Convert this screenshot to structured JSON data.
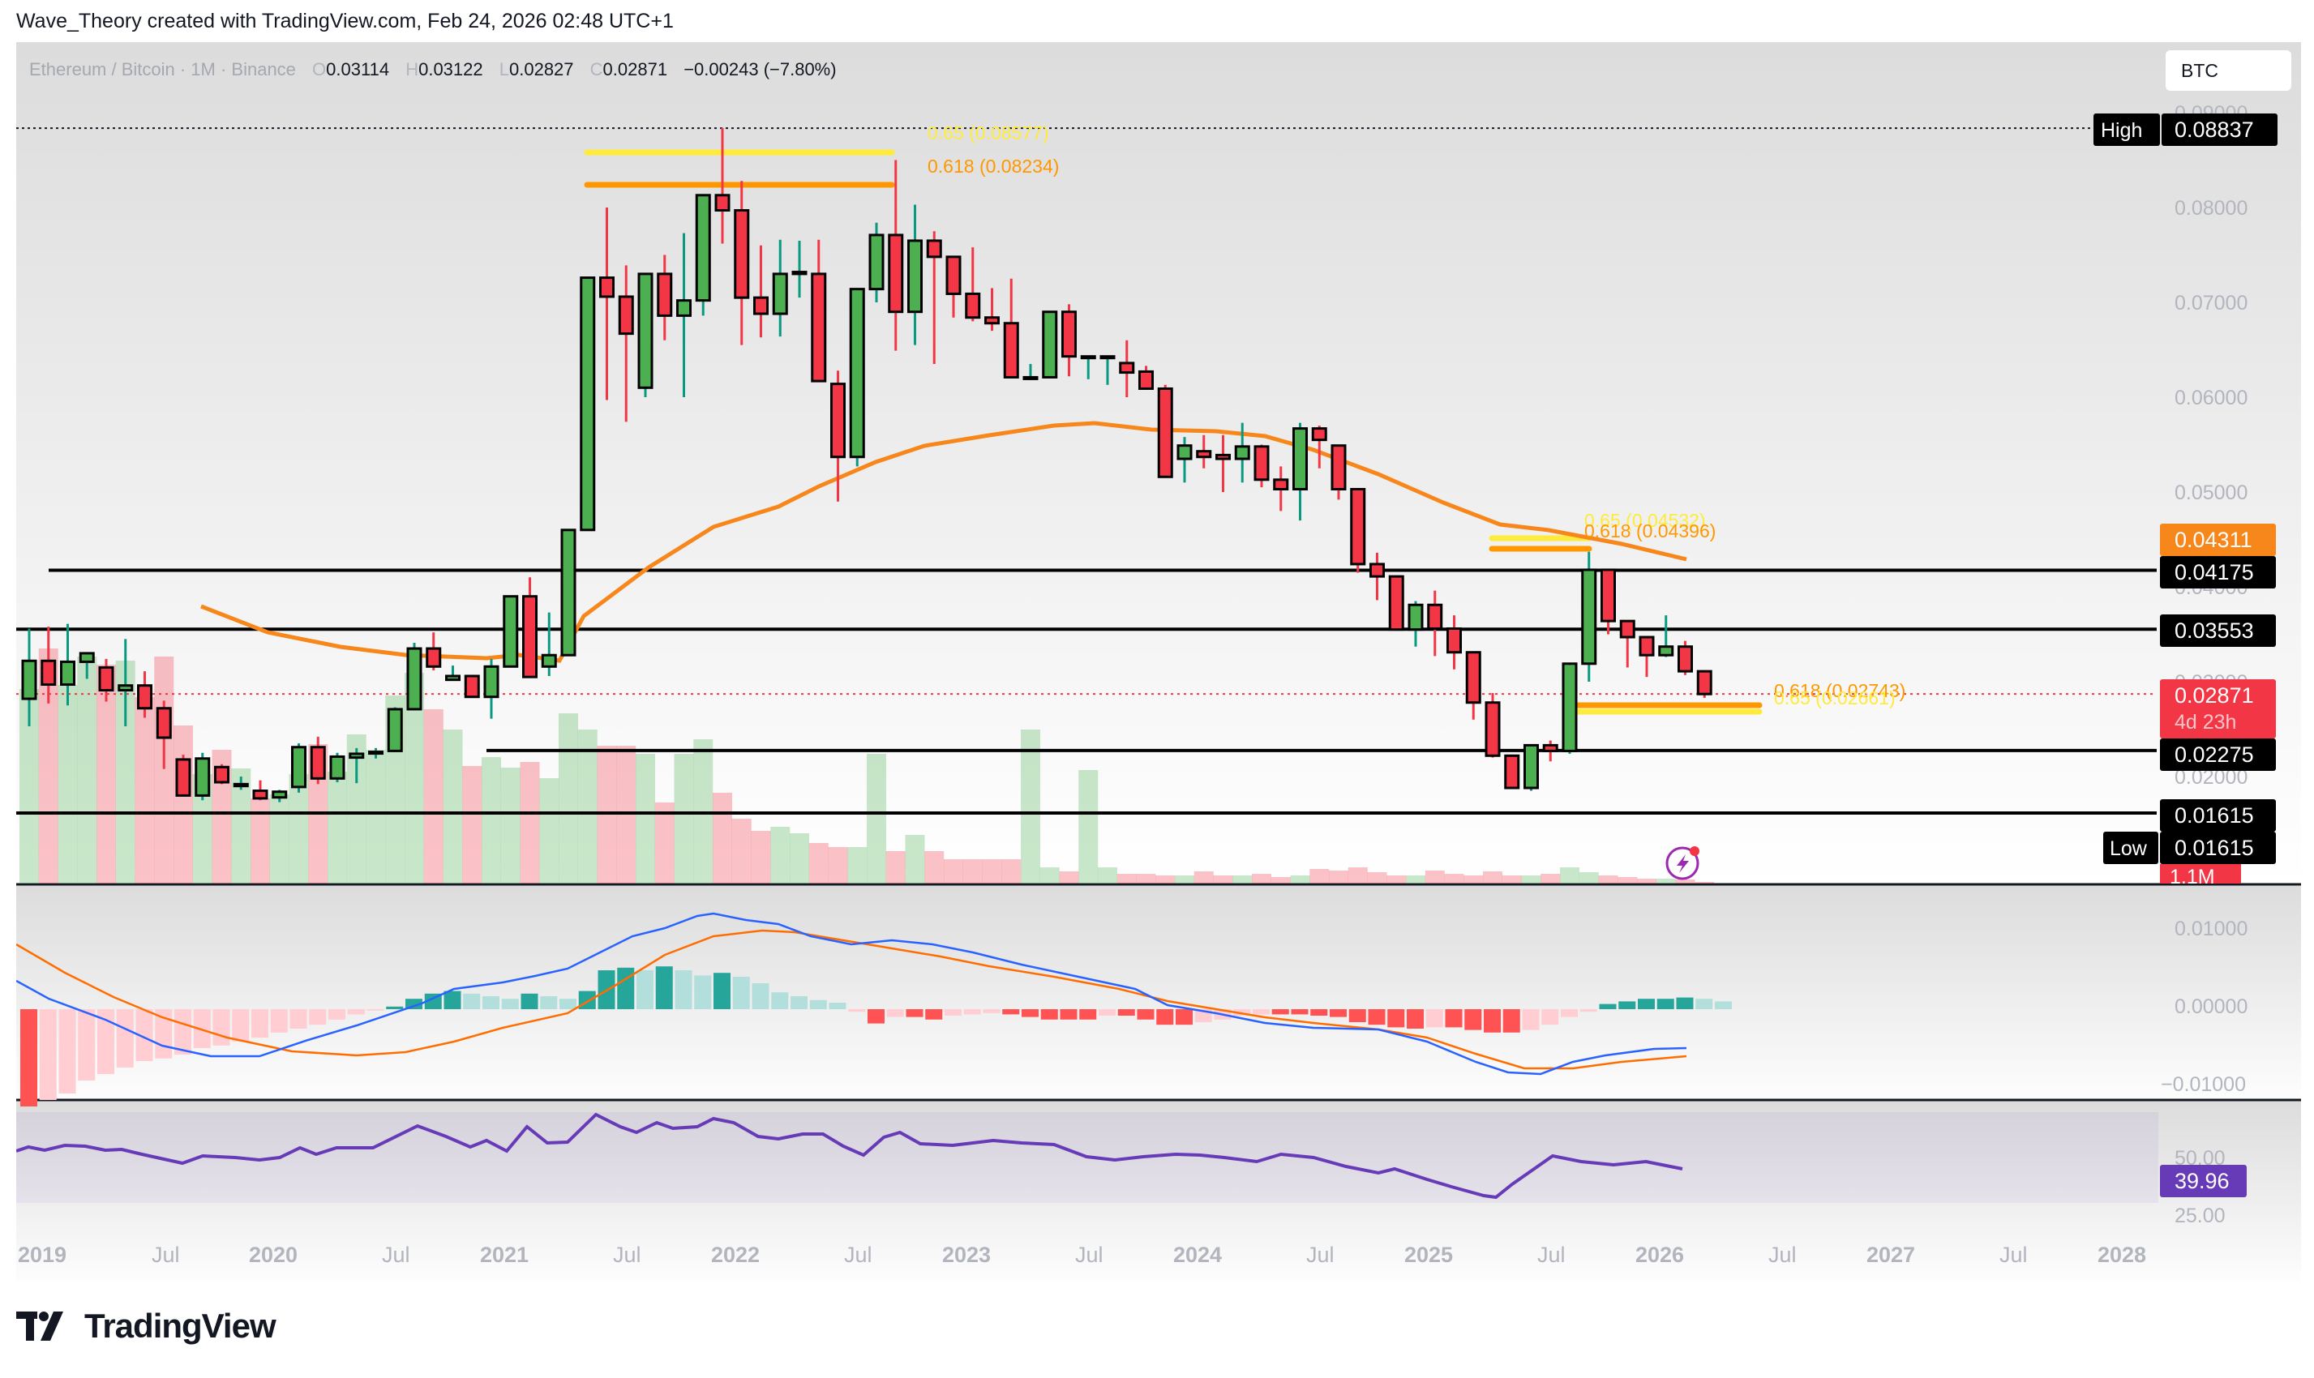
{
  "header": {
    "caption": "Wave_Theory created with TradingView.com, Feb 24, 2026 02:48 UTC+1"
  },
  "legend": {
    "symbol": "Ethereum / Bitcoin · 1M · Binance",
    "o_label": "O",
    "o": "0.03114",
    "h_label": "H",
    "h": "0.03122",
    "l_label": "L",
    "l": "0.02827",
    "c_label": "C",
    "c": "0.02871",
    "change": "−0.00243 (−7.80%)"
  },
  "currency_button": "BTC",
  "price_axis": {
    "ticks": [
      "0.09000",
      "0.08000",
      "0.07000",
      "0.06000",
      "0.05000",
      "0.04000",
      "0.03000",
      "0.02000"
    ],
    "labels": {
      "high_tag": "High",
      "high": "0.08837",
      "ema": "0.04311",
      "r1": "0.04175",
      "r2": "0.03553",
      "last": "0.02871",
      "countdown": "4d 23h",
      "s1": "0.02275",
      "s2": "0.01615",
      "low_tag": "Low",
      "low": "0.01615",
      "volume": "1.1M"
    }
  },
  "fib_labels": {
    "top_065": "0.65 (0.08577)",
    "top_0618": "0.618 (0.08234)",
    "mid_065": "0.65 (0.04532)",
    "mid_0618": "0.618 (0.04396)",
    "low_0618": "0.618 (0.02743)",
    "low_065": "0.65 (0.02661)"
  },
  "macd_axis": {
    "ticks": [
      "0.01000",
      "0.00000",
      "−0.01000"
    ]
  },
  "rsi_axis": {
    "ticks": [
      "50.00",
      "25.00"
    ],
    "value": "39.96"
  },
  "time_axis": {
    "ticks": [
      "2019",
      "Jul",
      "2020",
      "Jul",
      "2021",
      "Jul",
      "2022",
      "Jul",
      "2023",
      "Jul",
      "2024",
      "Jul",
      "2025",
      "Jul",
      "2026",
      "Jul",
      "2027",
      "Jul",
      "2028"
    ]
  },
  "brand": {
    "name": "TradingView"
  },
  "colors": {
    "up": "#4caf50",
    "down": "#f23645",
    "ema": "#f7861b",
    "fib_065": "#ffeb3b",
    "fib_0618": "#ff9800",
    "rsi": "#673ab7",
    "macd": "#2962ff",
    "signal": "#ff6d00"
  },
  "chart_data": {
    "type": "candlestick",
    "title": "Ethereum / Bitcoin · 1M · Binance",
    "ylabel": "BTC",
    "ylim": [
      0.0135,
      0.0905
    ],
    "x_start": "2018-11",
    "interval": "1M",
    "candles": [
      [
        0.0282,
        0.0356,
        0.0253,
        0.0322
      ],
      [
        0.0322,
        0.0358,
        0.0277,
        0.0297
      ],
      [
        0.0297,
        0.0361,
        0.0275,
        0.0321
      ],
      [
        0.0321,
        0.0327,
        0.0303,
        0.033
      ],
      [
        0.0315,
        0.0324,
        0.0279,
        0.0291
      ],
      [
        0.0291,
        0.0345,
        0.0253,
        0.0296
      ],
      [
        0.0296,
        0.0311,
        0.0262,
        0.0272
      ],
      [
        0.0272,
        0.028,
        0.0208,
        0.0241
      ],
      [
        0.0218,
        0.0223,
        0.0182,
        0.018
      ],
      [
        0.018,
        0.0225,
        0.0175,
        0.0219
      ],
      [
        0.021,
        0.0213,
        0.0192,
        0.0194
      ],
      [
        0.019,
        0.02,
        0.0186,
        0.0192
      ],
      [
        0.0185,
        0.0196,
        0.0175,
        0.0177
      ],
      [
        0.0178,
        0.0186,
        0.0173,
        0.0184
      ],
      [
        0.0189,
        0.0235,
        0.0183,
        0.0231
      ],
      [
        0.0231,
        0.0242,
        0.0192,
        0.0198
      ],
      [
        0.0198,
        0.0225,
        0.0194,
        0.0221
      ],
      [
        0.022,
        0.023,
        0.0193,
        0.0224
      ],
      [
        0.0225,
        0.023,
        0.0219,
        0.0226
      ],
      [
        0.0227,
        0.0273,
        0.0226,
        0.0271
      ],
      [
        0.0271,
        0.0341,
        0.027,
        0.0335
      ],
      [
        0.0335,
        0.0352,
        0.0312,
        0.0316
      ],
      [
        0.0302,
        0.0317,
        0.0302,
        0.0306
      ],
      [
        0.0306,
        0.0282,
        0.0296,
        0.0284
      ],
      [
        0.0284,
        0.0324,
        0.0261,
        0.0316
      ],
      [
        0.0316,
        0.0387,
        0.0316,
        0.039
      ],
      [
        0.039,
        0.041,
        0.031,
        0.0305
      ],
      [
        0.0316,
        0.0373,
        0.0306,
        0.0328
      ],
      [
        0.0328,
        0.0433,
        0.033,
        0.046
      ],
      [
        0.046,
        0.065,
        0.0459,
        0.0726
      ],
      [
        0.0726,
        0.08,
        0.0597,
        0.0706
      ],
      [
        0.0706,
        0.0739,
        0.0574,
        0.0667
      ],
      [
        0.061,
        0.073,
        0.06,
        0.073
      ],
      [
        0.073,
        0.075,
        0.066,
        0.0686
      ],
      [
        0.0686,
        0.0773,
        0.06,
        0.0702
      ],
      [
        0.0702,
        0.078,
        0.0686,
        0.0813
      ],
      [
        0.0813,
        0.0884,
        0.0762,
        0.0797
      ],
      [
        0.0797,
        0.0828,
        0.0655,
        0.0705
      ],
      [
        0.0705,
        0.076,
        0.0663,
        0.0688
      ],
      [
        0.0688,
        0.0766,
        0.0664,
        0.073
      ],
      [
        0.073,
        0.0765,
        0.0705,
        0.0732
      ],
      [
        0.073,
        0.0766,
        0.0635,
        0.0617
      ],
      [
        0.0614,
        0.0628,
        0.049,
        0.0537
      ],
      [
        0.0537,
        0.0707,
        0.0527,
        0.0714
      ],
      [
        0.0714,
        0.0784,
        0.07,
        0.0771
      ],
      [
        0.0771,
        0.085,
        0.0649,
        0.069
      ],
      [
        0.069,
        0.0803,
        0.0655,
        0.0765
      ],
      [
        0.0765,
        0.0775,
        0.0635,
        0.0748
      ],
      [
        0.0748,
        0.0733,
        0.0684,
        0.0709
      ],
      [
        0.0709,
        0.0758,
        0.068,
        0.0684
      ],
      [
        0.0684,
        0.0715,
        0.067,
        0.0678
      ],
      [
        0.0678,
        0.0725,
        0.063,
        0.0621
      ],
      [
        0.0621,
        0.0635,
        0.0618,
        0.0621
      ],
      [
        0.0621,
        0.069,
        0.0621,
        0.069
      ],
      [
        0.069,
        0.0698,
        0.0622,
        0.0643
      ],
      [
        0.0643,
        0.064,
        0.0619,
        0.0643
      ],
      [
        0.0643,
        0.0626,
        0.0613,
        0.0643
      ],
      [
        0.0636,
        0.066,
        0.06,
        0.0626
      ],
      [
        0.0627,
        0.0633,
        0.0618,
        0.0609
      ],
      [
        0.0609,
        0.0613,
        0.0553,
        0.0516
      ],
      [
        0.0535,
        0.0558,
        0.051,
        0.0549
      ],
      [
        0.0543,
        0.056,
        0.0525,
        0.0537
      ],
      [
        0.0539,
        0.056,
        0.05,
        0.0535
      ],
      [
        0.0535,
        0.0573,
        0.051,
        0.0548
      ],
      [
        0.0548,
        0.055,
        0.0505,
        0.0513
      ],
      [
        0.0513,
        0.0527,
        0.048,
        0.0503
      ],
      [
        0.0503,
        0.0573,
        0.047,
        0.0567
      ],
      [
        0.0567,
        0.057,
        0.0525,
        0.0555
      ],
      [
        0.0549,
        0.0545,
        0.0492,
        0.0503
      ],
      [
        0.0503,
        0.0473,
        0.0415,
        0.0424
      ],
      [
        0.0424,
        0.0436,
        0.0386,
        0.0411
      ],
      [
        0.0411,
        0.0405,
        0.0355,
        0.0355
      ],
      [
        0.0355,
        0.0385,
        0.0337,
        0.0381
      ],
      [
        0.0381,
        0.0396,
        0.0327,
        0.0356
      ],
      [
        0.0356,
        0.037,
        0.0313,
        0.0331
      ],
      [
        0.0331,
        0.0324,
        0.026,
        0.0278
      ],
      [
        0.0278,
        0.0288,
        0.022,
        0.0222
      ],
      [
        0.0222,
        0.0211,
        0.0188,
        0.0188
      ],
      [
        0.0188,
        0.0232,
        0.0185,
        0.0233
      ],
      [
        0.0233,
        0.0238,
        0.0216,
        0.0227
      ],
      [
        0.0227,
        0.0311,
        0.0224,
        0.0319
      ],
      [
        0.0319,
        0.0437,
        0.03,
        0.0418
      ],
      [
        0.0418,
        0.0418,
        0.035,
        0.0364
      ],
      [
        0.0364,
        0.0355,
        0.0315,
        0.0347
      ],
      [
        0.0347,
        0.0335,
        0.0305,
        0.0328
      ],
      [
        0.0328,
        0.037,
        0.0326,
        0.0337
      ],
      [
        0.0337,
        0.0343,
        0.0307,
        0.0311
      ],
      [
        0.0311,
        0.0312,
        0.0283,
        0.0287
      ]
    ],
    "overlays": {
      "ema50_last": 0.04311,
      "horizontal_levels": [
        0.04175,
        0.03553,
        0.02275,
        0.01615
      ],
      "high": 0.08837,
      "low": 0.01615,
      "last": 0.02871,
      "fib_zones": [
        {
          "level_065": 0.08577,
          "level_0618": 0.08234
        },
        {
          "level_065": 0.04532,
          "level_0618": 0.04396
        },
        {
          "level_0618": 0.02743,
          "level_065": 0.02661
        }
      ]
    },
    "macd": {
      "ylim": [
        -0.0125,
        0.0115
      ],
      "ticks": [
        0.01,
        0.0,
        -0.01
      ]
    },
    "rsi": {
      "last": 39.96,
      "ticks": [
        50,
        25
      ]
    },
    "x_ticks": [
      "2019",
      "Jul",
      "2020",
      "Jul",
      "2021",
      "Jul",
      "2022",
      "Jul",
      "2023",
      "Jul",
      "2024",
      "Jul",
      "2025",
      "Jul",
      "2026",
      "Jul",
      "2027",
      "Jul",
      "2028"
    ]
  }
}
